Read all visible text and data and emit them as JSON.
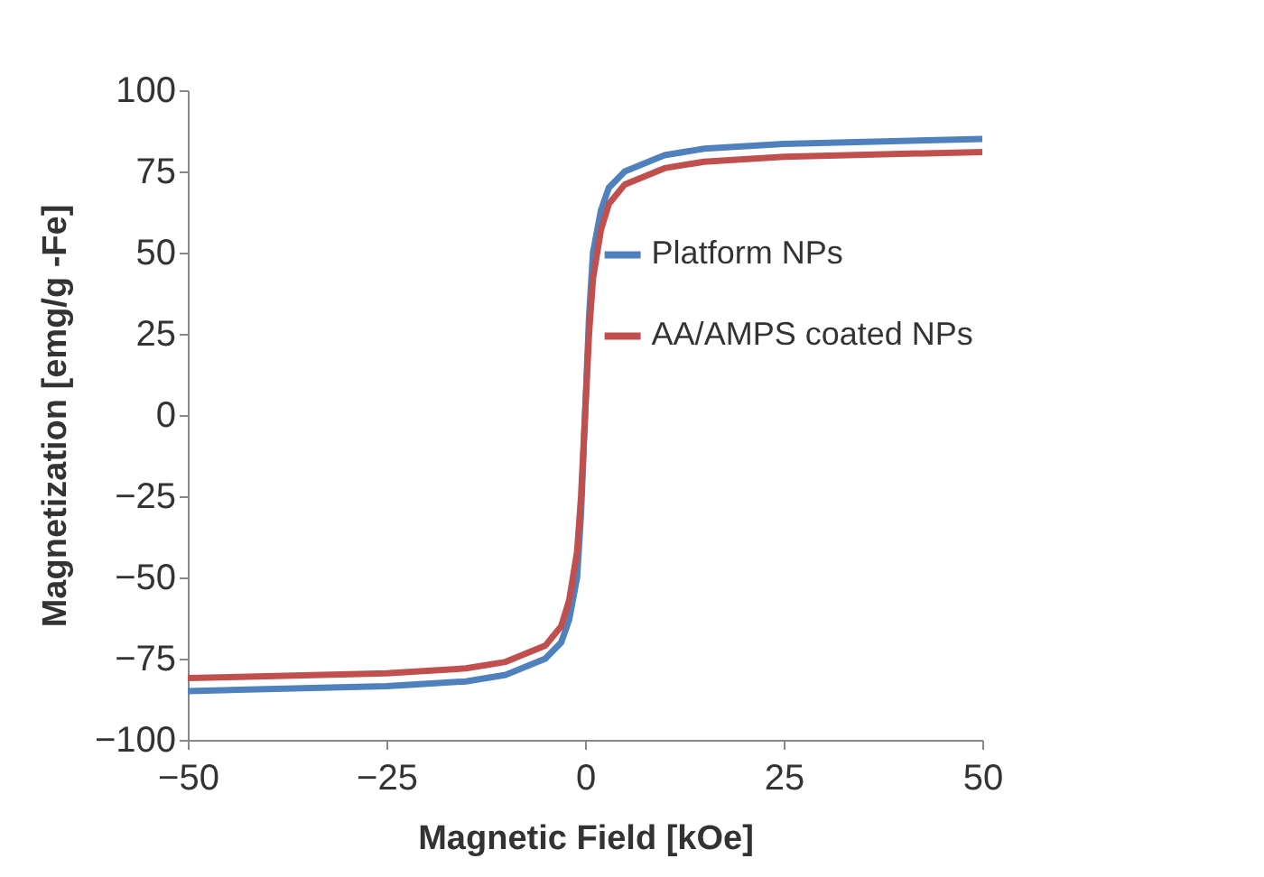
{
  "chart_data": {
    "type": "line",
    "xlabel": "Magnetic Field [kOe]",
    "ylabel": "Magnetization [emg/g -Fe]",
    "x": [
      -50,
      -25,
      -15,
      -10,
      -5,
      -3,
      -2,
      -1,
      -0.5,
      0,
      0.5,
      1,
      2,
      3,
      5,
      10,
      15,
      25,
      50
    ],
    "series": [
      {
        "name": "Platform NPs",
        "color": "#4f81bd",
        "values": [
          -85,
          -83.5,
          -82,
          -80,
          -75,
          -70,
          -63,
          -50,
          -30,
          0,
          30,
          50,
          63,
          70,
          75,
          80,
          82,
          83.5,
          85
        ]
      },
      {
        "name": "AA/AMPS coated NPs",
        "color": "#c0504d",
        "values": [
          -81,
          -79.5,
          -78,
          -76,
          -71,
          -65,
          -57,
          -42,
          -25,
          0,
          25,
          42,
          57,
          65,
          71,
          76,
          78,
          79.5,
          81
        ]
      }
    ],
    "xlim": [
      -50,
      50
    ],
    "xticks": [
      -50,
      -25,
      0,
      25,
      50
    ],
    "ylim": [
      -100,
      100
    ],
    "yticks": [
      -100,
      -75,
      -50,
      -25,
      0,
      25,
      50,
      75,
      100
    ],
    "grid": false,
    "legend": "right",
    "marker": "none",
    "line_style": "solid"
  }
}
